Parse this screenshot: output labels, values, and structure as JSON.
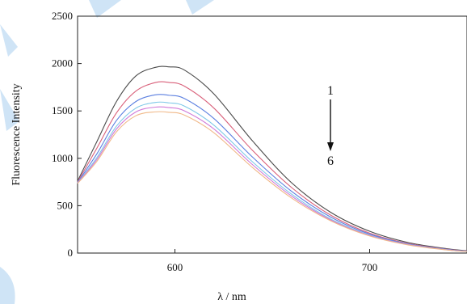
{
  "chart_data": {
    "type": "line",
    "xlabel": "λ / nm",
    "ylabel": "Fluorescence Intensity",
    "xlim": [
      550,
      750
    ],
    "ylim": [
      0,
      2500
    ],
    "x_ticks": [
      600,
      700
    ],
    "y_ticks": [
      0,
      500,
      1000,
      1500,
      2000,
      2500
    ],
    "grid": false,
    "legend": "none",
    "annotation": {
      "start_label": "1",
      "end_label": "6"
    },
    "x": [
      550,
      560,
      570,
      580,
      590,
      597,
      605,
      620,
      640,
      660,
      680,
      700,
      720,
      740,
      750
    ],
    "series": [
      {
        "color": "#4a4a4a",
        "values": [
          760,
          1180,
          1600,
          1870,
          1960,
          1965,
          1930,
          1680,
          1180,
          740,
          430,
          230,
          110,
          45,
          25
        ]
      },
      {
        "color": "#d9607a",
        "values": [
          750,
          1110,
          1480,
          1710,
          1800,
          1800,
          1760,
          1530,
          1080,
          690,
          400,
          210,
          100,
          40,
          22
        ]
      },
      {
        "color": "#5b7fe0",
        "values": [
          745,
          1050,
          1400,
          1600,
          1670,
          1665,
          1630,
          1420,
          1010,
          650,
          380,
          200,
          95,
          38,
          20
        ]
      },
      {
        "color": "#7fc8e8",
        "values": [
          740,
          1010,
          1340,
          1530,
          1590,
          1585,
          1550,
          1350,
          960,
          620,
          360,
          190,
          90,
          35,
          18
        ]
      },
      {
        "color": "#d07ad8",
        "values": [
          738,
          990,
          1310,
          1490,
          1540,
          1535,
          1500,
          1310,
          930,
          600,
          350,
          185,
          88,
          34,
          17
        ]
      },
      {
        "color": "#f0b888",
        "values": [
          735,
          970,
          1280,
          1450,
          1490,
          1485,
          1455,
          1270,
          900,
          580,
          340,
          180,
          85,
          32,
          16
        ]
      }
    ]
  }
}
